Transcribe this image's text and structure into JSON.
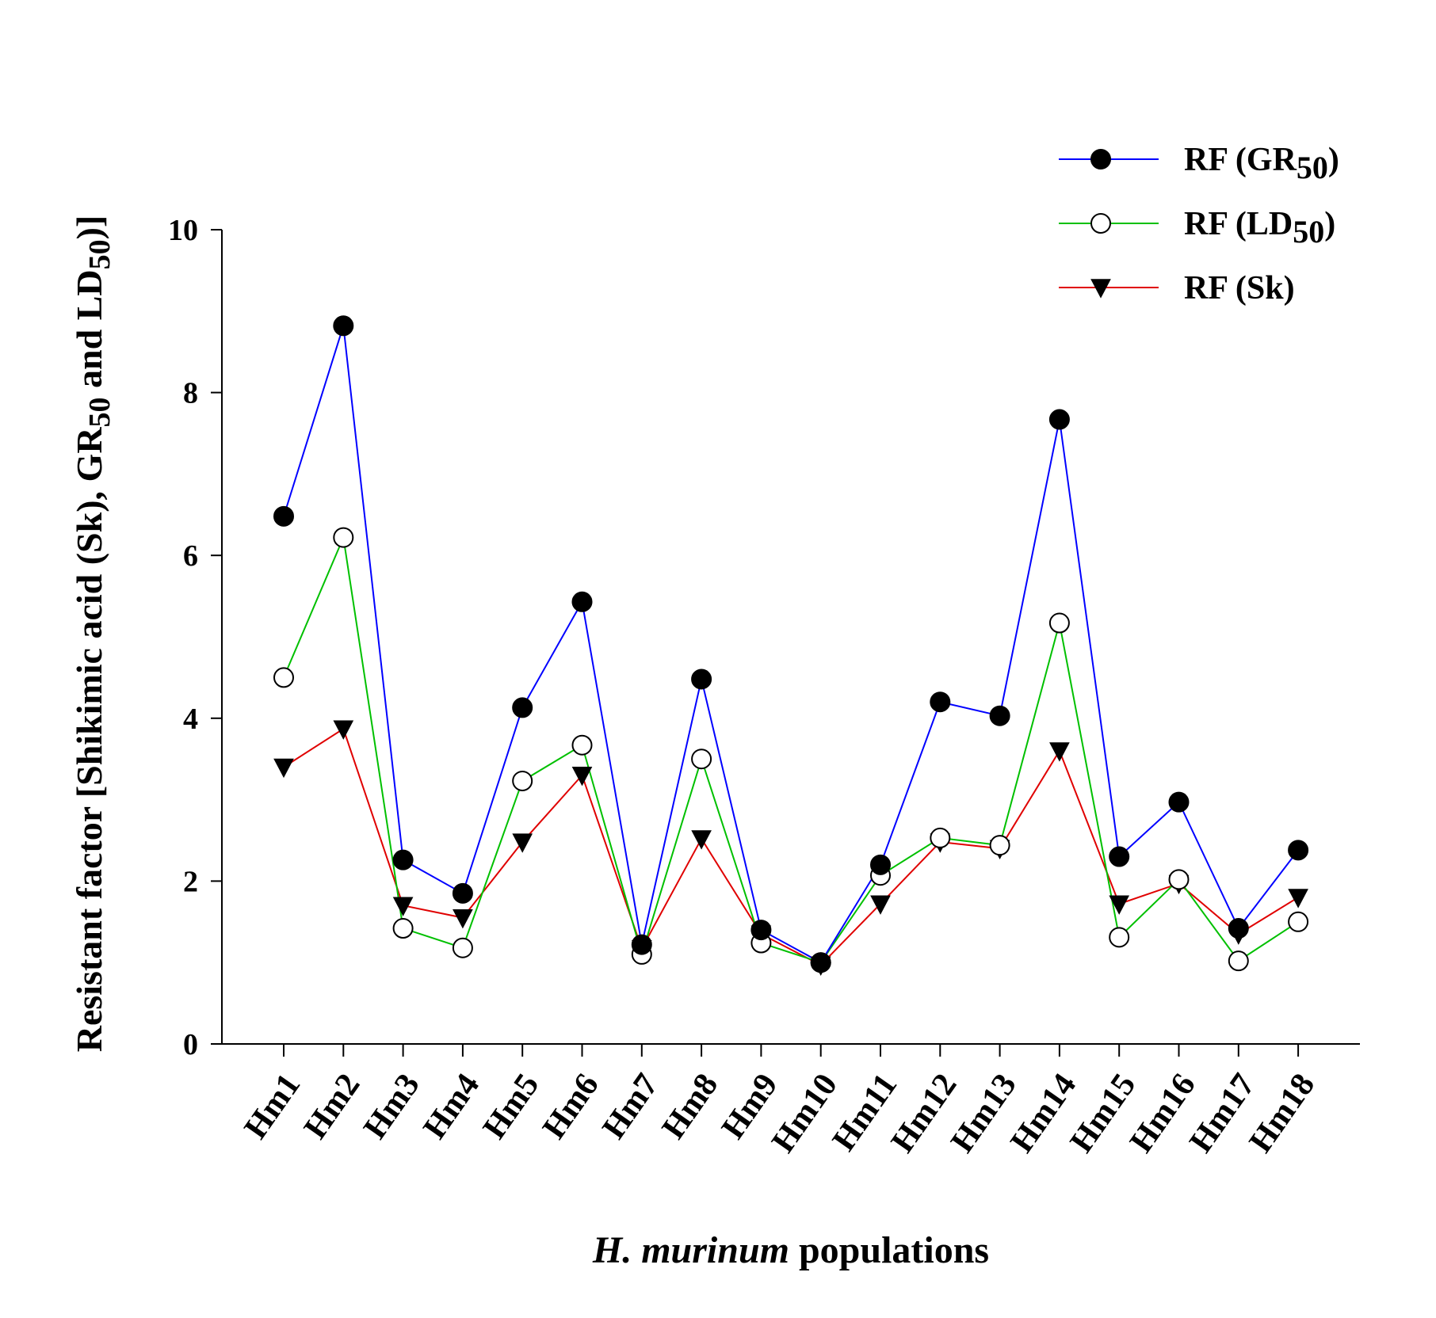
{
  "chart_data": {
    "type": "line",
    "title": "",
    "xlabel": {
      "italic": "H. murinum",
      "rest": " populations"
    },
    "ylabel": {
      "main": "Resistant factor [Shikimic acid (Sk), GR",
      "sub1": "50",
      "mid": " and LD",
      "sub2": "50",
      "end": ")]"
    },
    "categories": [
      "Hm1",
      "Hm2",
      "Hm3",
      "Hm4",
      "Hm5",
      "Hm6",
      "Hm7",
      "Hm8",
      "Hm9",
      "Hm10",
      "Hm11",
      "Hm12",
      "Hm13",
      "Hm14",
      "Hm15",
      "Hm16",
      "Hm17",
      "Hm18"
    ],
    "ylim": [
      0,
      10
    ],
    "yticks": [
      0,
      2,
      4,
      6,
      8,
      10
    ],
    "ytick_labels": [
      "0",
      "2",
      "4",
      "6",
      "8",
      "10"
    ],
    "grid": false,
    "legend_position": "top-right",
    "series": [
      {
        "name": "RF (GR",
        "sub": "50",
        "close": ")",
        "color": "#0000ff",
        "marker": "filled-circle",
        "values": [
          6.48,
          8.82,
          2.26,
          1.85,
          4.13,
          5.43,
          1.22,
          4.48,
          1.4,
          1.0,
          2.2,
          4.2,
          4.03,
          7.67,
          2.3,
          2.97,
          1.42,
          2.38
        ]
      },
      {
        "name": "RF (LD",
        "sub": "50",
        "close": ")",
        "color": "#00c000",
        "marker": "open-circle",
        "values": [
          4.5,
          6.22,
          1.42,
          1.18,
          3.23,
          3.67,
          1.1,
          3.5,
          1.24,
          1.0,
          2.07,
          2.53,
          2.44,
          5.17,
          1.31,
          2.02,
          1.02,
          1.5
        ]
      },
      {
        "name": "RF (Sk)",
        "sub": "",
        "close": "",
        "color": "#e00000",
        "marker": "filled-triangle-down",
        "values": [
          3.4,
          3.87,
          1.7,
          1.55,
          2.48,
          3.3,
          1.17,
          2.52,
          1.35,
          0.97,
          1.72,
          2.48,
          2.4,
          3.6,
          1.72,
          1.97,
          1.35,
          1.8
        ]
      }
    ]
  }
}
